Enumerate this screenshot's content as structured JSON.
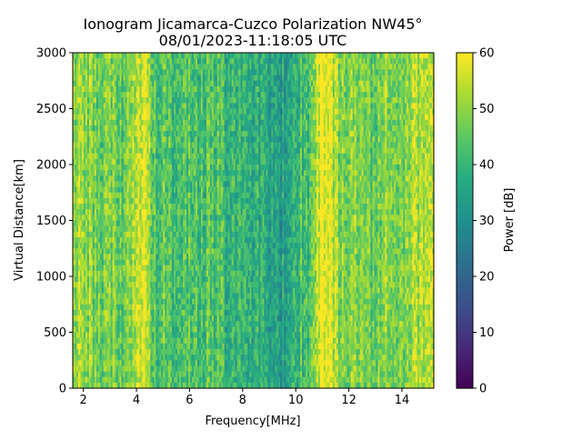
{
  "chart_data": {
    "type": "heatmap",
    "title": "Ionogram Jicamarca-Cuzco Polarization NW45°",
    "subtitle": "08/01/2023-11:18:05 UTC",
    "xlabel": "Frequency[MHz]",
    "ylabel": "Virtual Distance[km]",
    "colorbar_label": "Power [dB]",
    "colormap": "viridis",
    "xlim": [
      1.6,
      15.2
    ],
    "ylim": [
      0,
      3000
    ],
    "clim": [
      0,
      60
    ],
    "x_ticks": [
      2,
      4,
      6,
      8,
      10,
      12,
      14
    ],
    "y_ticks": [
      0,
      500,
      1000,
      1500,
      2000,
      2500,
      3000
    ],
    "colorbar_ticks": [
      0,
      10,
      20,
      30,
      40,
      50,
      60
    ],
    "column_power_profile": {
      "description_points_mhz": [
        1.6,
        2.0,
        2.5,
        3.0,
        3.5,
        4.0,
        4.3,
        4.6,
        5.0,
        5.5,
        6.0,
        6.5,
        7.0,
        7.5,
        8.0,
        8.5,
        9.0,
        9.5,
        10.0,
        10.5,
        10.9,
        11.2,
        11.6,
        12.0,
        12.5,
        13.0,
        13.5,
        14.0,
        14.5,
        15.0,
        15.2
      ],
      "power_db": [
        50,
        52,
        47,
        48,
        44,
        56,
        56,
        42,
        46,
        40,
        46,
        42,
        44,
        40,
        38,
        38,
        36,
        33,
        40,
        43,
        59,
        58,
        50,
        48,
        50,
        44,
        52,
        46,
        52,
        56,
        55
      ]
    }
  }
}
